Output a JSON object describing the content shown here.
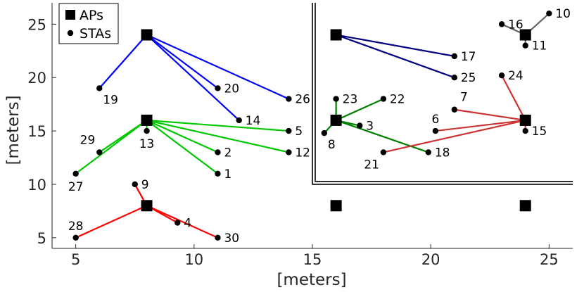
{
  "chart_data": {
    "type": "scatter",
    "title": "",
    "xlabel": "[meters]",
    "ylabel": "[meters]",
    "xlim": [
      4,
      26
    ],
    "ylim": [
      4,
      27
    ],
    "xticks": [
      5,
      10,
      15,
      20,
      25
    ],
    "yticks": [
      5,
      10,
      15,
      20,
      25
    ],
    "grid": false,
    "legend": {
      "position": "top-left",
      "entries": [
        {
          "name": "APs",
          "marker": "square"
        },
        {
          "name": "STAs",
          "marker": "circle"
        }
      ]
    },
    "region_box": {
      "x_range": [
        15,
        26
      ],
      "y_range": [
        10,
        27
      ],
      "style": "double-line"
    },
    "aps": [
      {
        "id": "ap-blue",
        "x": 8,
        "y": 24,
        "color": "#0000ff"
      },
      {
        "id": "ap-green",
        "x": 8,
        "y": 16,
        "color": "#00c800"
      },
      {
        "id": "ap-red",
        "x": 8,
        "y": 8,
        "color": "#ff0000"
      },
      {
        "id": "ap-navy",
        "x": 16,
        "y": 24,
        "color": "#000080"
      },
      {
        "id": "ap-darkgreen",
        "x": 16,
        "y": 16,
        "color": "#008000"
      },
      {
        "id": "ap-brickred",
        "x": 24,
        "y": 16,
        "color": "#cc3333"
      },
      {
        "id": "ap-gray",
        "x": 24,
        "y": 24,
        "color": "#666666"
      },
      {
        "id": "ap-idle-1",
        "x": 16,
        "y": 8,
        "color": "#000000"
      },
      {
        "id": "ap-idle-2",
        "x": 24,
        "y": 8,
        "color": "#000000"
      }
    ],
    "stas": [
      {
        "label": "1",
        "x": 11,
        "y": 11,
        "ap": "ap-green",
        "label_pos": "right"
      },
      {
        "label": "2",
        "x": 11,
        "y": 13,
        "ap": "ap-green",
        "label_pos": "right"
      },
      {
        "label": "3",
        "x": 17,
        "y": 15.5,
        "ap": "ap-darkgreen",
        "label_pos": "right"
      },
      {
        "label": "4",
        "x": 9.3,
        "y": 6.4,
        "ap": "ap-red",
        "label_pos": "right"
      },
      {
        "label": "5",
        "x": 14,
        "y": 15,
        "ap": "ap-green",
        "label_pos": "right"
      },
      {
        "label": "6",
        "x": 20.2,
        "y": 15,
        "ap": "ap-brickred",
        "label_pos": "above"
      },
      {
        "label": "7",
        "x": 21,
        "y": 17,
        "ap": "ap-brickred",
        "label_pos": "above-right"
      },
      {
        "label": "8",
        "x": 15.5,
        "y": 14.8,
        "ap": "ap-darkgreen",
        "label_pos": "below-right"
      },
      {
        "label": "9",
        "x": 7.5,
        "y": 10,
        "ap": "ap-red",
        "label_pos": "right"
      },
      {
        "label": "10",
        "x": 25,
        "y": 26,
        "ap": "ap-gray",
        "label_pos": "right"
      },
      {
        "label": "11",
        "x": 24,
        "y": 23,
        "ap": "ap-gray",
        "label_pos": "right"
      },
      {
        "label": "12",
        "x": 14,
        "y": 13,
        "ap": "ap-green",
        "label_pos": "right"
      },
      {
        "label": "13",
        "x": 8,
        "y": 15,
        "ap": "ap-green",
        "label_pos": "below"
      },
      {
        "label": "14",
        "x": 11.9,
        "y": 16,
        "ap": "ap-blue",
        "label_pos": "right"
      },
      {
        "label": "15",
        "x": 24,
        "y": 15,
        "ap": "ap-brickred",
        "label_pos": "right"
      },
      {
        "label": "16",
        "x": 23,
        "y": 25,
        "ap": "ap-gray",
        "label_pos": "right"
      },
      {
        "label": "17",
        "x": 21,
        "y": 22,
        "ap": "ap-navy",
        "label_pos": "right"
      },
      {
        "label": "18",
        "x": 19.9,
        "y": 13,
        "ap": "ap-darkgreen",
        "label_pos": "right"
      },
      {
        "label": "19",
        "x": 6,
        "y": 19,
        "ap": "ap-blue",
        "label_pos": "below-right"
      },
      {
        "label": "20",
        "x": 11,
        "y": 19,
        "ap": "ap-blue",
        "label_pos": "right"
      },
      {
        "label": "21",
        "x": 18,
        "y": 13,
        "ap": "ap-brickred",
        "label_pos": "below-left"
      },
      {
        "label": "22",
        "x": 18,
        "y": 18,
        "ap": "ap-darkgreen",
        "label_pos": "right"
      },
      {
        "label": "23",
        "x": 16,
        "y": 18,
        "ap": "ap-darkgreen",
        "label_pos": "right"
      },
      {
        "label": "24",
        "x": 23,
        "y": 20.2,
        "ap": "ap-brickred",
        "label_pos": "right"
      },
      {
        "label": "25",
        "x": 21,
        "y": 20,
        "ap": "ap-navy",
        "label_pos": "right"
      },
      {
        "label": "26",
        "x": 14,
        "y": 18,
        "ap": "ap-blue",
        "label_pos": "right"
      },
      {
        "label": "27",
        "x": 5,
        "y": 11,
        "ap": "ap-green",
        "label_pos": "below"
      },
      {
        "label": "28",
        "x": 5,
        "y": 5,
        "ap": "ap-red",
        "label_pos": "above"
      },
      {
        "label": "29",
        "x": 6,
        "y": 13,
        "ap": "ap-green",
        "label_pos": "above-left"
      },
      {
        "label": "30",
        "x": 11,
        "y": 5,
        "ap": "ap-red",
        "label_pos": "right"
      }
    ]
  }
}
